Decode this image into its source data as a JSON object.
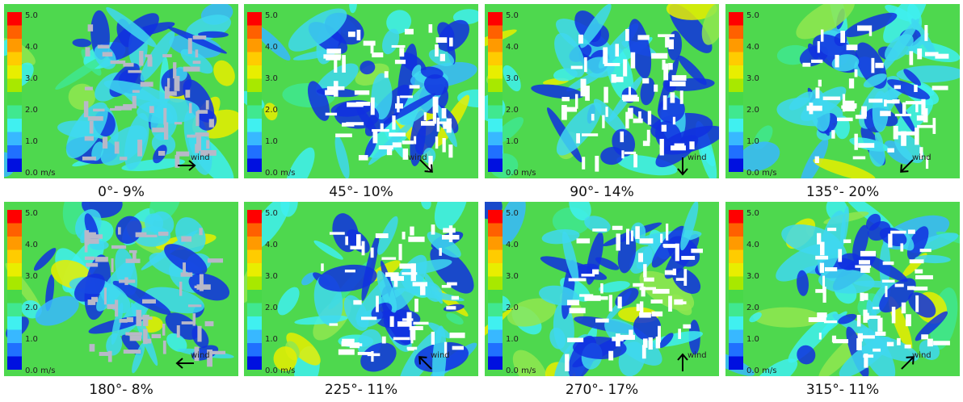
{
  "legend": {
    "ticks": [
      "5.0",
      "4.0",
      "3.0",
      "2.0",
      "1.0",
      "0.0 m/s"
    ]
  },
  "wind_label": "wind",
  "panels": [
    {
      "caption": "0°- 9%"
    },
    {
      "caption": "45°- 10%"
    },
    {
      "caption": "90°- 14%"
    },
    {
      "caption": "135°- 20%"
    },
    {
      "caption": "180°- 8%"
    },
    {
      "caption": "225°- 11%"
    },
    {
      "caption": "270°- 17%"
    },
    {
      "caption": "315°- 11%"
    }
  ]
}
